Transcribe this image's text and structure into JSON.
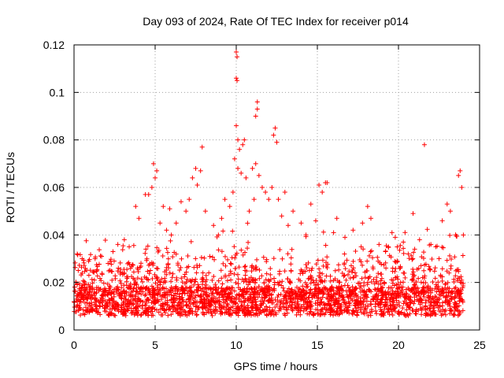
{
  "chart_data": {
    "type": "scatter",
    "title": "Day 093 of 2024, Rate Of TEC Index for receiver p014",
    "xlabel": "GPS time / hours",
    "ylabel": "ROTI / TECUs",
    "xlim": [
      0,
      25
    ],
    "ylim": [
      0,
      0.12
    ],
    "x_ticks": [
      0,
      5,
      10,
      15,
      20,
      25
    ],
    "x_tick_labels": [
      "0",
      "5",
      "10",
      "15",
      "20",
      "25"
    ],
    "y_ticks": [
      0,
      0.02,
      0.04,
      0.06,
      0.08,
      0.1,
      0.12
    ],
    "y_tick_labels": [
      "0",
      "0.02",
      "0.04",
      "0.06",
      "0.08",
      "0.1",
      "0.12"
    ],
    "grid": true,
    "marker": "+",
    "color": "#ff0000",
    "series": [
      {
        "name": "ROTI",
        "points": [
          [
            10.0,
            0.117
          ],
          [
            10.05,
            0.115
          ],
          [
            10.0,
            0.106
          ],
          [
            10.05,
            0.105
          ],
          [
            11.3,
            0.096
          ],
          [
            11.3,
            0.093
          ],
          [
            11.2,
            0.09
          ],
          [
            10.0,
            0.086
          ],
          [
            12.4,
            0.085
          ],
          [
            12.3,
            0.082
          ],
          [
            12.5,
            0.079
          ],
          [
            10.1,
            0.08
          ],
          [
            10.5,
            0.08
          ],
          [
            10.4,
            0.078
          ],
          [
            10.2,
            0.076
          ],
          [
            7.9,
            0.077
          ],
          [
            21.6,
            0.078
          ],
          [
            4.9,
            0.07
          ],
          [
            5.1,
            0.067
          ],
          [
            5.0,
            0.064
          ],
          [
            4.8,
            0.06
          ],
          [
            7.5,
            0.068
          ],
          [
            7.3,
            0.064
          ],
          [
            7.6,
            0.061
          ],
          [
            7.8,
            0.067
          ],
          [
            9.9,
            0.072
          ],
          [
            10.1,
            0.068
          ],
          [
            10.3,
            0.066
          ],
          [
            10.6,
            0.064
          ],
          [
            11.0,
            0.068
          ],
          [
            11.2,
            0.07
          ],
          [
            11.4,
            0.065
          ],
          [
            11.6,
            0.06
          ],
          [
            11.8,
            0.058
          ],
          [
            12.0,
            0.055
          ],
          [
            12.6,
            0.055
          ],
          [
            13.0,
            0.058
          ],
          [
            15.1,
            0.061
          ],
          [
            15.5,
            0.062
          ],
          [
            15.6,
            0.062
          ],
          [
            15.3,
            0.058
          ],
          [
            23.8,
            0.067
          ],
          [
            23.7,
            0.065
          ],
          [
            23.9,
            0.06
          ],
          [
            4.4,
            0.057
          ],
          [
            4.6,
            0.057
          ],
          [
            5.5,
            0.052
          ],
          [
            5.9,
            0.051
          ],
          [
            6.6,
            0.054
          ],
          [
            6.9,
            0.05
          ],
          [
            7.1,
            0.055
          ],
          [
            8.1,
            0.05
          ],
          [
            9.3,
            0.055
          ],
          [
            9.6,
            0.052
          ],
          [
            13.5,
            0.05
          ],
          [
            14.6,
            0.053
          ],
          [
            16.2,
            0.047
          ],
          [
            18.1,
            0.052
          ],
          [
            18.3,
            0.047
          ],
          [
            20.9,
            0.049
          ],
          [
            23.0,
            0.053
          ],
          [
            23.2,
            0.05
          ],
          [
            22.7,
            0.046
          ],
          [
            3.8,
            0.052
          ],
          [
            4.0,
            0.047
          ],
          [
            3.1,
            0.038
          ],
          [
            2.7,
            0.036
          ],
          [
            8.6,
            0.044
          ],
          [
            8.9,
            0.04
          ],
          [
            9.1,
            0.047
          ],
          [
            16.7,
            0.039
          ],
          [
            17.2,
            0.042
          ],
          [
            19.6,
            0.041
          ],
          [
            19.8,
            0.039
          ],
          [
            20.3,
            0.037
          ],
          [
            21.3,
            0.038
          ],
          [
            22.0,
            0.036
          ],
          [
            22.3,
            0.035
          ],
          [
            24.0,
            0.04
          ],
          [
            0.2,
            0.032
          ],
          [
            0.5,
            0.03
          ],
          [
            0.9,
            0.029
          ],
          [
            1.3,
            0.03
          ],
          [
            1.7,
            0.031
          ],
          [
            2.1,
            0.028
          ],
          [
            2.4,
            0.033
          ],
          [
            3.4,
            0.035
          ],
          [
            5.3,
            0.045
          ],
          [
            5.7,
            0.042
          ],
          [
            6.3,
            0.045
          ],
          [
            6.0,
            0.04
          ],
          [
            14.0,
            0.045
          ],
          [
            14.3,
            0.04
          ],
          [
            17.7,
            0.035
          ],
          [
            18.8,
            0.036
          ],
          [
            19.2,
            0.033
          ],
          [
            20.6,
            0.032
          ],
          [
            21.0,
            0.034
          ],
          [
            22.5,
            0.03
          ],
          [
            12.8,
            0.048
          ],
          [
            13.2,
            0.044
          ],
          [
            14.9,
            0.046
          ],
          [
            16.0,
            0.041
          ],
          [
            10.8,
            0.05
          ],
          [
            11.1,
            0.055
          ],
          [
            9.8,
            0.058
          ],
          [
            12.2,
            0.06
          ]
        ]
      }
    ]
  }
}
